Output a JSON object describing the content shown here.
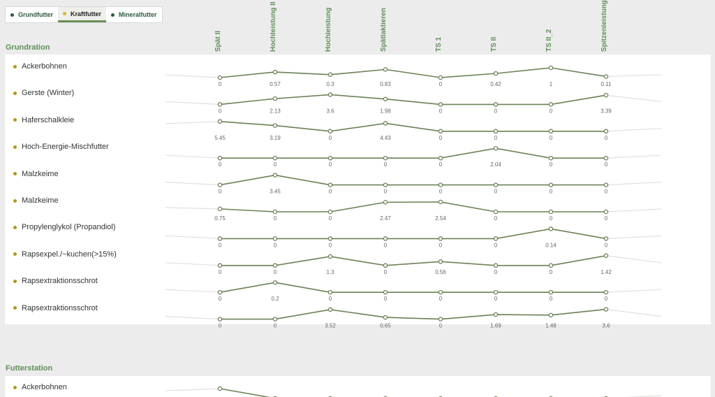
{
  "tabs": [
    {
      "label": "Grundfutter",
      "color": "#2e5a3a",
      "active": false
    },
    {
      "label": "Kraftfutter",
      "color": "#d9b43a",
      "active": true
    },
    {
      "label": "Mineralfutter",
      "color": "#2e5a3a",
      "active": false
    }
  ],
  "columns": [
    "Spät II",
    "Hochleistung II",
    "Hochleistung",
    "Spätlaktieren",
    "TS 1",
    "TS II",
    "TS II_2",
    "Spitzenleistung"
  ],
  "colors": {
    "line": "#6b8155",
    "marker_fill": "#ffffff",
    "highlight": "#f0a080",
    "faded": "#e0e0dc",
    "accent": "#5f8f58",
    "bullet": "#b5961c"
  },
  "sections": [
    {
      "title": "Grundration",
      "rows": [
        {
          "name": "Ackerbohnen",
          "values": [
            0,
            0.57,
            0.3,
            0.83,
            0,
            0.42,
            1,
            0.11
          ]
        },
        {
          "name": "Gerste (Winter)",
          "values": [
            0,
            2.13,
            3.6,
            1.98,
            0,
            0,
            0,
            3.39
          ]
        },
        {
          "name": "Haferschalkleie",
          "values": [
            5.45,
            3.19,
            0,
            4.43,
            0,
            0,
            0,
            0
          ]
        },
        {
          "name": "Hoch-Energie-Mischfutter",
          "values": [
            0,
            0,
            0,
            0,
            0,
            2.04,
            0,
            0
          ]
        },
        {
          "name": "Malzkeime",
          "values": [
            0,
            3.45,
            0,
            0,
            0,
            0,
            0,
            0
          ]
        },
        {
          "name": "Malzkeime",
          "values": [
            0.75,
            0,
            0,
            2.47,
            2.54,
            0,
            0,
            0
          ]
        },
        {
          "name": "Propylenglykol (Propandiol)",
          "values": [
            0,
            0,
            0,
            0,
            0,
            0,
            0.14,
            0
          ]
        },
        {
          "name": "Rapsexpel./~kuchen(>15%)",
          "values": [
            0,
            0,
            1.3,
            0,
            0.56,
            0,
            0,
            1.42
          ]
        },
        {
          "name": "Rapsextraktionsschrot",
          "values": [
            0,
            0.2,
            0,
            0,
            0,
            0,
            0,
            0
          ]
        },
        {
          "name": "Rapsextraktionsschrot",
          "values": [
            0,
            0,
            3.52,
            0.65,
            0,
            1.69,
            1.48,
            3.6
          ]
        }
      ]
    },
    {
      "title": "Futterstation",
      "rows": [
        {
          "name": "Ackerbohnen",
          "values": [
            1,
            0,
            0,
            0,
            0,
            0,
            0,
            0
          ]
        }
      ]
    }
  ]
}
